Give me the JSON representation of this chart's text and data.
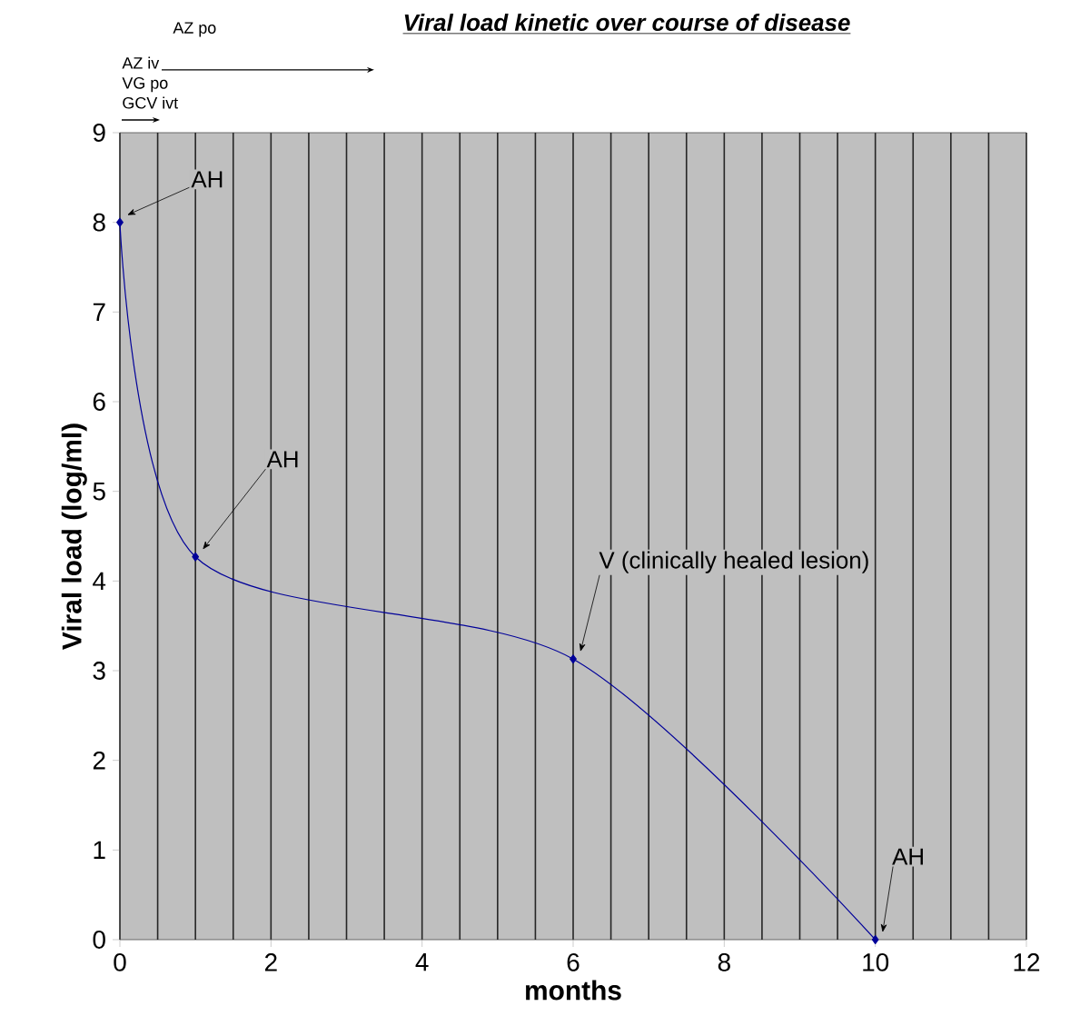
{
  "chart_data": {
    "type": "line",
    "title": "Viral load kinetic over course of disease",
    "xlabel": "months",
    "ylabel": "Viral load (log/ml)",
    "x": [
      0,
      1,
      6,
      10
    ],
    "series": [
      {
        "color": "#000099",
        "values": [
          8,
          4.27,
          3.13,
          0
        ]
      }
    ],
    "xlim": [
      0,
      12
    ],
    "ylim": [
      0,
      9
    ],
    "xticks": [
      0,
      {
        "value": 0.5,
        "label": null
      },
      {
        "value": 1,
        "label": null
      },
      {
        "value": 1.5,
        "label": null
      },
      2,
      {
        "value": 2.5,
        "label": null
      },
      {
        "value": 3,
        "label": null
      },
      {
        "value": 3.5,
        "label": null
      },
      4,
      {
        "value": 4.5,
        "label": null
      },
      {
        "value": 5,
        "label": null
      },
      {
        "value": 5.5,
        "label": null
      },
      6,
      {
        "value": 6.5,
        "label": null
      },
      {
        "value": 7,
        "label": null
      },
      {
        "value": 7.5,
        "label": null
      },
      8,
      {
        "value": 8.5,
        "label": null
      },
      {
        "value": 9,
        "label": null
      },
      {
        "value": 9.5,
        "label": null
      },
      10,
      {
        "value": 10.5,
        "label": null
      },
      {
        "value": 11,
        "label": null
      },
      {
        "value": 11.5,
        "label": null
      },
      12
    ],
    "yticks": [
      0,
      1,
      2,
      3,
      4,
      5,
      6,
      7,
      8,
      9
    ],
    "grid": "x",
    "marker": "diamond",
    "line_style": "solid",
    "annotations": [
      {
        "text": "AH",
        "x": 0,
        "y": 8
      },
      {
        "text": "AH",
        "x": 1,
        "y": 4.27
      },
      {
        "text": "V (clinically healed lesion)",
        "x": 6,
        "y": 3.13
      },
      {
        "text": "AH",
        "x": 10,
        "y": 0
      },
      "AZ iv",
      "VG po",
      "GCV ivt",
      "AZ po"
    ]
  }
}
